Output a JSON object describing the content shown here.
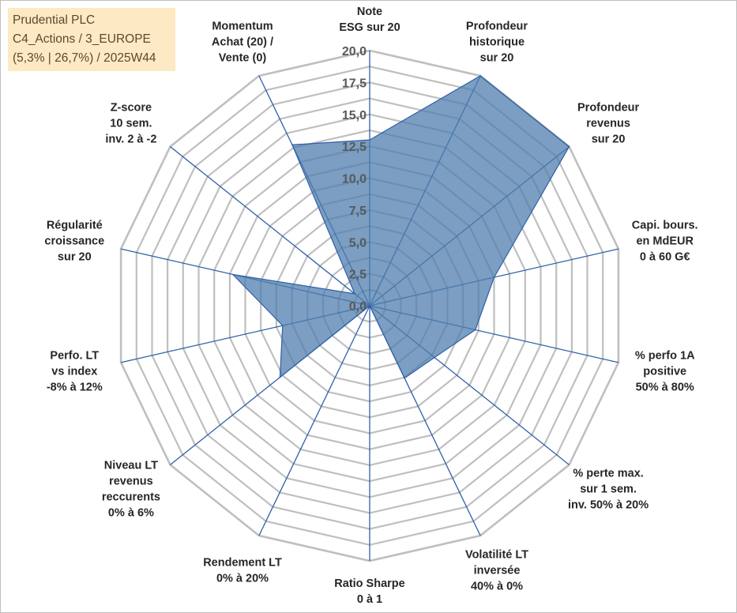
{
  "info_box": {
    "line1": "Prudential PLC",
    "line2": "C4_Actions / 3_EUROPE",
    "line3": "(5,3% | 26,7%) / 2025W44"
  },
  "colors": {
    "grid": "#bfbfbf",
    "spoke": "#2f5fa8",
    "fill": "#4f7dae",
    "fill_opacity": 0.75,
    "info_bg": "#fde9c3"
  },
  "chart_data": {
    "type": "radar",
    "title": "",
    "rmin": 0,
    "rmax": 20,
    "tick_step": 2.5,
    "tick_labels": [
      "0,0",
      "2,5",
      "5,0",
      "7,5",
      "10,0",
      "12,5",
      "15,0",
      "17,5",
      "20,0"
    ],
    "grid_rings": 16,
    "axes": [
      {
        "label": [
          "Note",
          "ESG sur 20"
        ]
      },
      {
        "label": [
          "Profondeur",
          "historique",
          "sur 20"
        ]
      },
      {
        "label": [
          "Profondeur",
          "revenus",
          "sur 20"
        ]
      },
      {
        "label": [
          "Capi. bours.",
          "en MdEUR",
          "0 à 60 G€"
        ]
      },
      {
        "label": [
          "% perfo 1A",
          "positive",
          "50% à 80%"
        ]
      },
      {
        "label": [
          "% perte max.",
          "sur 1 sem.",
          "inv. 50% à 20%"
        ]
      },
      {
        "label": [
          "Volatilité LT",
          "inversée",
          "40% à 0%"
        ]
      },
      {
        "label": [
          "Ratio Sharpe",
          "0 à 1"
        ]
      },
      {
        "label": [
          "Rendement LT",
          "0% à 20%"
        ]
      },
      {
        "label": [
          "Niveau LT",
          "revenus",
          "reccurents",
          "0% à 6%"
        ]
      },
      {
        "label": [
          "Perfo. LT",
          "vs index",
          "-8% à 12%"
        ]
      },
      {
        "label": [
          "Régularité",
          "croissance",
          "sur 20"
        ]
      },
      {
        "label": [
          "Z-score",
          "10 sem.",
          "inv. 2 à -2"
        ]
      },
      {
        "label": [
          "Momentum",
          "Achat (20) /",
          "Vente (0)"
        ]
      }
    ],
    "series": [
      {
        "values": [
          13.0,
          20.0,
          20.0,
          10.0,
          8.5,
          6.5,
          6.3,
          0.0,
          0.0,
          9.0,
          7.0,
          11.0,
          1.5,
          14.0
        ]
      }
    ]
  }
}
